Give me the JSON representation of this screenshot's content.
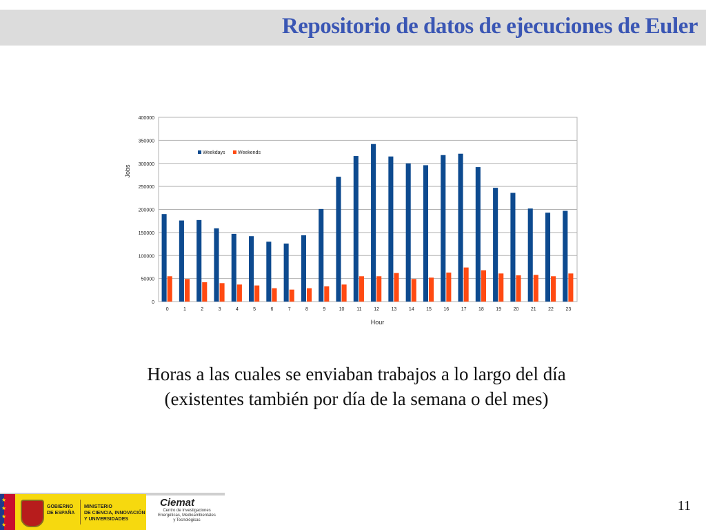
{
  "slide": {
    "title": "Repositorio de datos de ejecuciones de Euler",
    "caption_line1": "Horas a las cuales se enviaban trabajos a lo largo del día",
    "caption_line2": "(existentes también por día de la semana o del mes)",
    "page_number": "11"
  },
  "footer": {
    "gov_line1": "GOBIERNO",
    "gov_line2": "DE ESPAÑA",
    "min_line1": "MINISTERIO",
    "min_line2": "DE CIENCIA, INNOVACIÓN",
    "min_line3": "Y UNIVERSIDADES",
    "ciemat_name": "Ciemat",
    "ciemat_sub1": "Centro de Investigaciones",
    "ciemat_sub2": "Energéticas, Medioambientales",
    "ciemat_sub3": "y Tecnológicas"
  },
  "colors": {
    "title": "#3a56b4",
    "weekdays": "#0d4a8f",
    "weekends": "#ff4a12"
  },
  "chart_data": {
    "type": "bar",
    "xlabel": "Hour",
    "ylabel": "Jobs",
    "ylim": [
      0,
      400000
    ],
    "yticks": [
      "0",
      "50000",
      "100000",
      "150000",
      "200000",
      "250000",
      "300000",
      "350000",
      "400000"
    ],
    "grid": true,
    "legend_position": "top-left",
    "categories": [
      "0",
      "1",
      "2",
      "3",
      "4",
      "5",
      "6",
      "7",
      "8",
      "9",
      "10",
      "11",
      "12",
      "13",
      "14",
      "15",
      "16",
      "17",
      "18",
      "19",
      "20",
      "21",
      "22",
      "23"
    ],
    "series": [
      {
        "name": "Weekdays",
        "values": [
          190000,
          176000,
          177000,
          159000,
          147000,
          142000,
          130000,
          126000,
          144000,
          201000,
          271000,
          316000,
          342000,
          315000,
          300000,
          296000,
          318000,
          321000,
          292000,
          247000,
          236000,
          202000,
          193000,
          197000
        ]
      },
      {
        "name": "Weekends",
        "values": [
          55000,
          49000,
          42000,
          40000,
          37000,
          35000,
          29000,
          26000,
          29000,
          33000,
          37000,
          55000,
          55000,
          62000,
          49000,
          52000,
          63000,
          74000,
          68000,
          61000,
          57000,
          58000,
          55000,
          61000
        ]
      }
    ]
  }
}
